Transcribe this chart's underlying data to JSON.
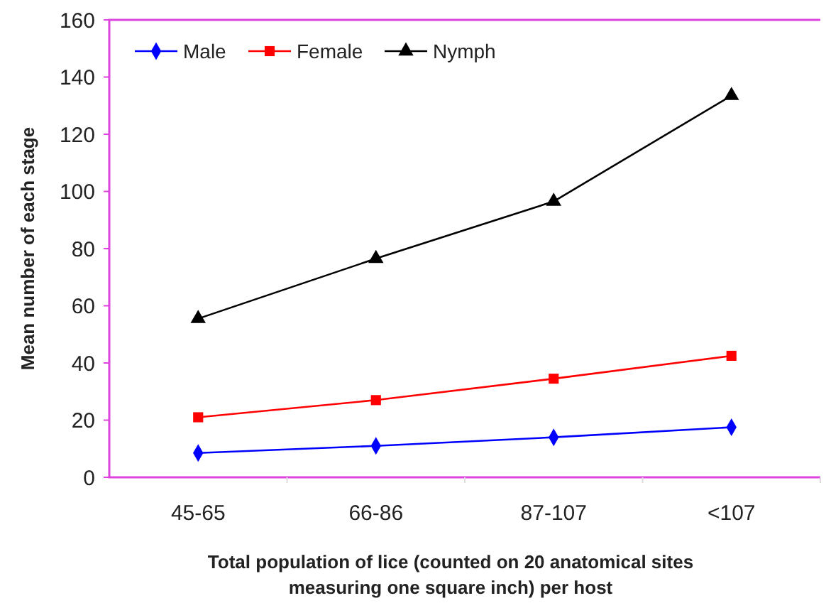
{
  "chart_data": {
    "type": "line",
    "xlabel": "Total population of lice (counted on 20 anatomical sites measuring one square inch) per host",
    "ylabel": "Mean number of each stage",
    "categories": [
      "45-65",
      "66-86",
      "87-107",
      "<107"
    ],
    "series": [
      {
        "name": "Male",
        "color": "#0000ff",
        "marker": "diamond",
        "values": [
          8.5,
          11,
          14,
          17.5
        ]
      },
      {
        "name": "Female",
        "color": "#ff0000",
        "marker": "square",
        "values": [
          21,
          27,
          34.5,
          42.5
        ]
      },
      {
        "name": "Nymph",
        "color": "#000000",
        "marker": "triangle",
        "values": [
          55.5,
          76.5,
          96.5,
          133.5
        ]
      }
    ],
    "ylim": [
      0,
      160
    ],
    "yticks": [
      0,
      20,
      40,
      60,
      80,
      100,
      120,
      140,
      160
    ],
    "grid": false,
    "legend": "top left",
    "line_style": "solid"
  }
}
